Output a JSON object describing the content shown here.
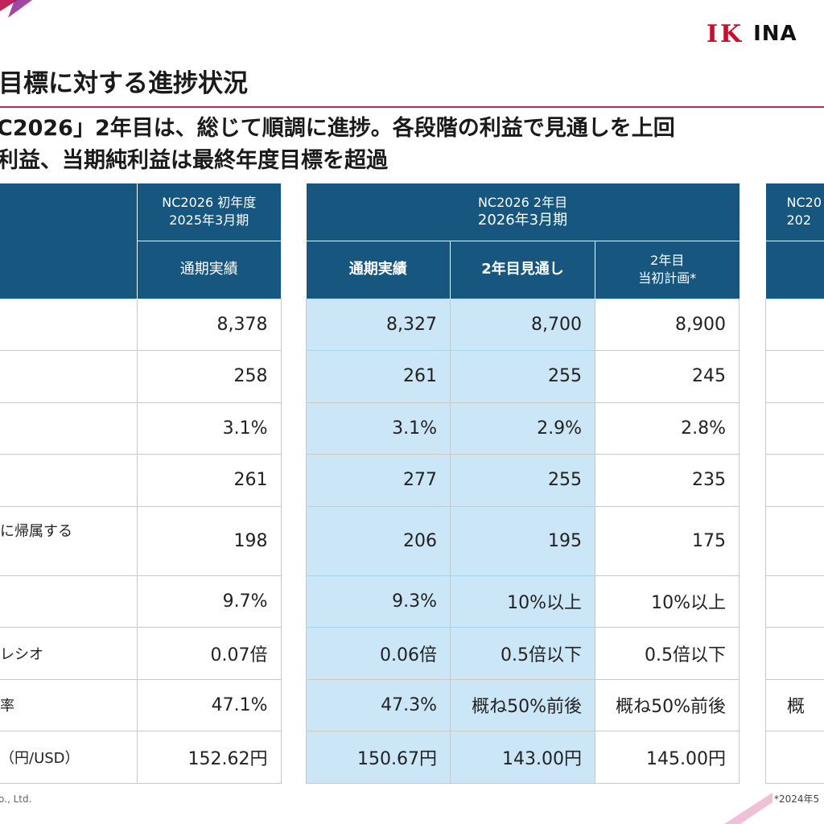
{
  "brand": {
    "logo_mark": "IK",
    "logo_text": "INA",
    "accent_color": "#c1245a",
    "header_color": "#17577f",
    "highlight_color": "#cbe6f6"
  },
  "heading": "目標に対する進捗状況",
  "lead": {
    "line1": "C2026」2年目は、総じて順調に進捗。各段階の利益で見通しを上回",
    "line2": "利益、当期純利益は最終年度目標を超過"
  },
  "labels": [
    "",
    "",
    "",
    "",
    "に帰属する",
    "",
    "レシオ",
    "率",
    "（円/USD）"
  ],
  "table1": {
    "header_top_line1": "NC2026 初年度",
    "header_top_line2": "2025年3月期",
    "col": "通期実績",
    "values": [
      "8,378",
      "258",
      "3.1%",
      "261",
      "198",
      "9.7%",
      "0.07倍",
      "47.1%",
      "152.62円"
    ]
  },
  "table2": {
    "header_top_line1": "NC2026 2年目",
    "header_top_line2": "2026年3月期",
    "cols": [
      "通期実績",
      "2年目見通し",
      "2年目",
      "当初計画*"
    ],
    "rows": [
      [
        "8,327",
        "8,700",
        "8,900"
      ],
      [
        "261",
        "255",
        "245"
      ],
      [
        "3.1%",
        "2.9%",
        "2.8%"
      ],
      [
        "277",
        "255",
        "235"
      ],
      [
        "206",
        "195",
        "175"
      ],
      [
        "9.3%",
        "10%以上",
        "10%以上"
      ],
      [
        "0.06倍",
        "0.5倍以下",
        "0.5倍以下"
      ],
      [
        "47.3%",
        "概ね50%前後",
        "概ね50%前後"
      ],
      [
        "150.67円",
        "143.00円",
        "145.00円"
      ]
    ]
  },
  "table3": {
    "header_line1": "NC20",
    "header_line2": "202",
    "row8_partial": "概"
  },
  "footer": {
    "left": "o., Ltd.",
    "right": "*2024年5"
  }
}
